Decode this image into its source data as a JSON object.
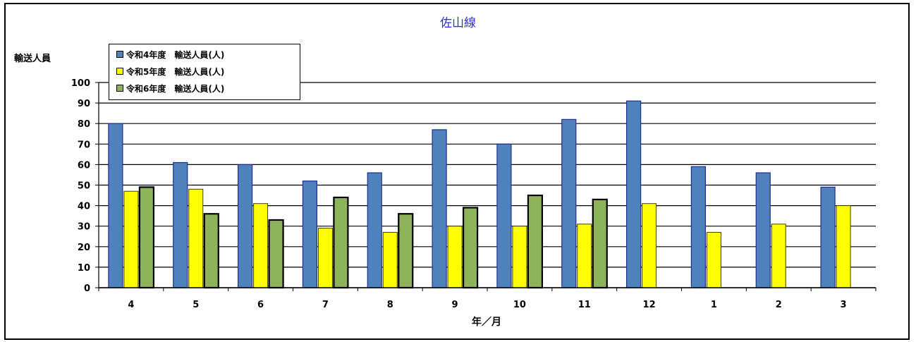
{
  "chart_data": {
    "type": "bar",
    "title": "佐山線",
    "ylabel": "輸送人員",
    "xlabel": "年／月",
    "categories": [
      "4",
      "5",
      "6",
      "7",
      "8",
      "9",
      "10",
      "11",
      "12",
      "1",
      "2",
      "3"
    ],
    "ylim": [
      0,
      100
    ],
    "yticks": [
      0,
      10,
      20,
      30,
      40,
      50,
      60,
      70,
      80,
      90,
      100
    ],
    "grid": true,
    "legend_position": "top-left",
    "series": [
      {
        "name": "令和4年度　輸送人員(人)",
        "color": "#4f81bd",
        "values": [
          80,
          61,
          60,
          52,
          56,
          77,
          70,
          82,
          91,
          59,
          56,
          49
        ]
      },
      {
        "name": "令和5年度　輸送人員(人)",
        "color": "#ffff00",
        "values": [
          47,
          48,
          41,
          29,
          27,
          30,
          30,
          31,
          41,
          27,
          31,
          40
        ]
      },
      {
        "name": "令和6年度　輸送人員(人)",
        "color": "#8fb35a",
        "values": [
          49,
          36,
          33,
          44,
          36,
          39,
          45,
          43,
          null,
          null,
          null,
          null
        ]
      }
    ]
  }
}
